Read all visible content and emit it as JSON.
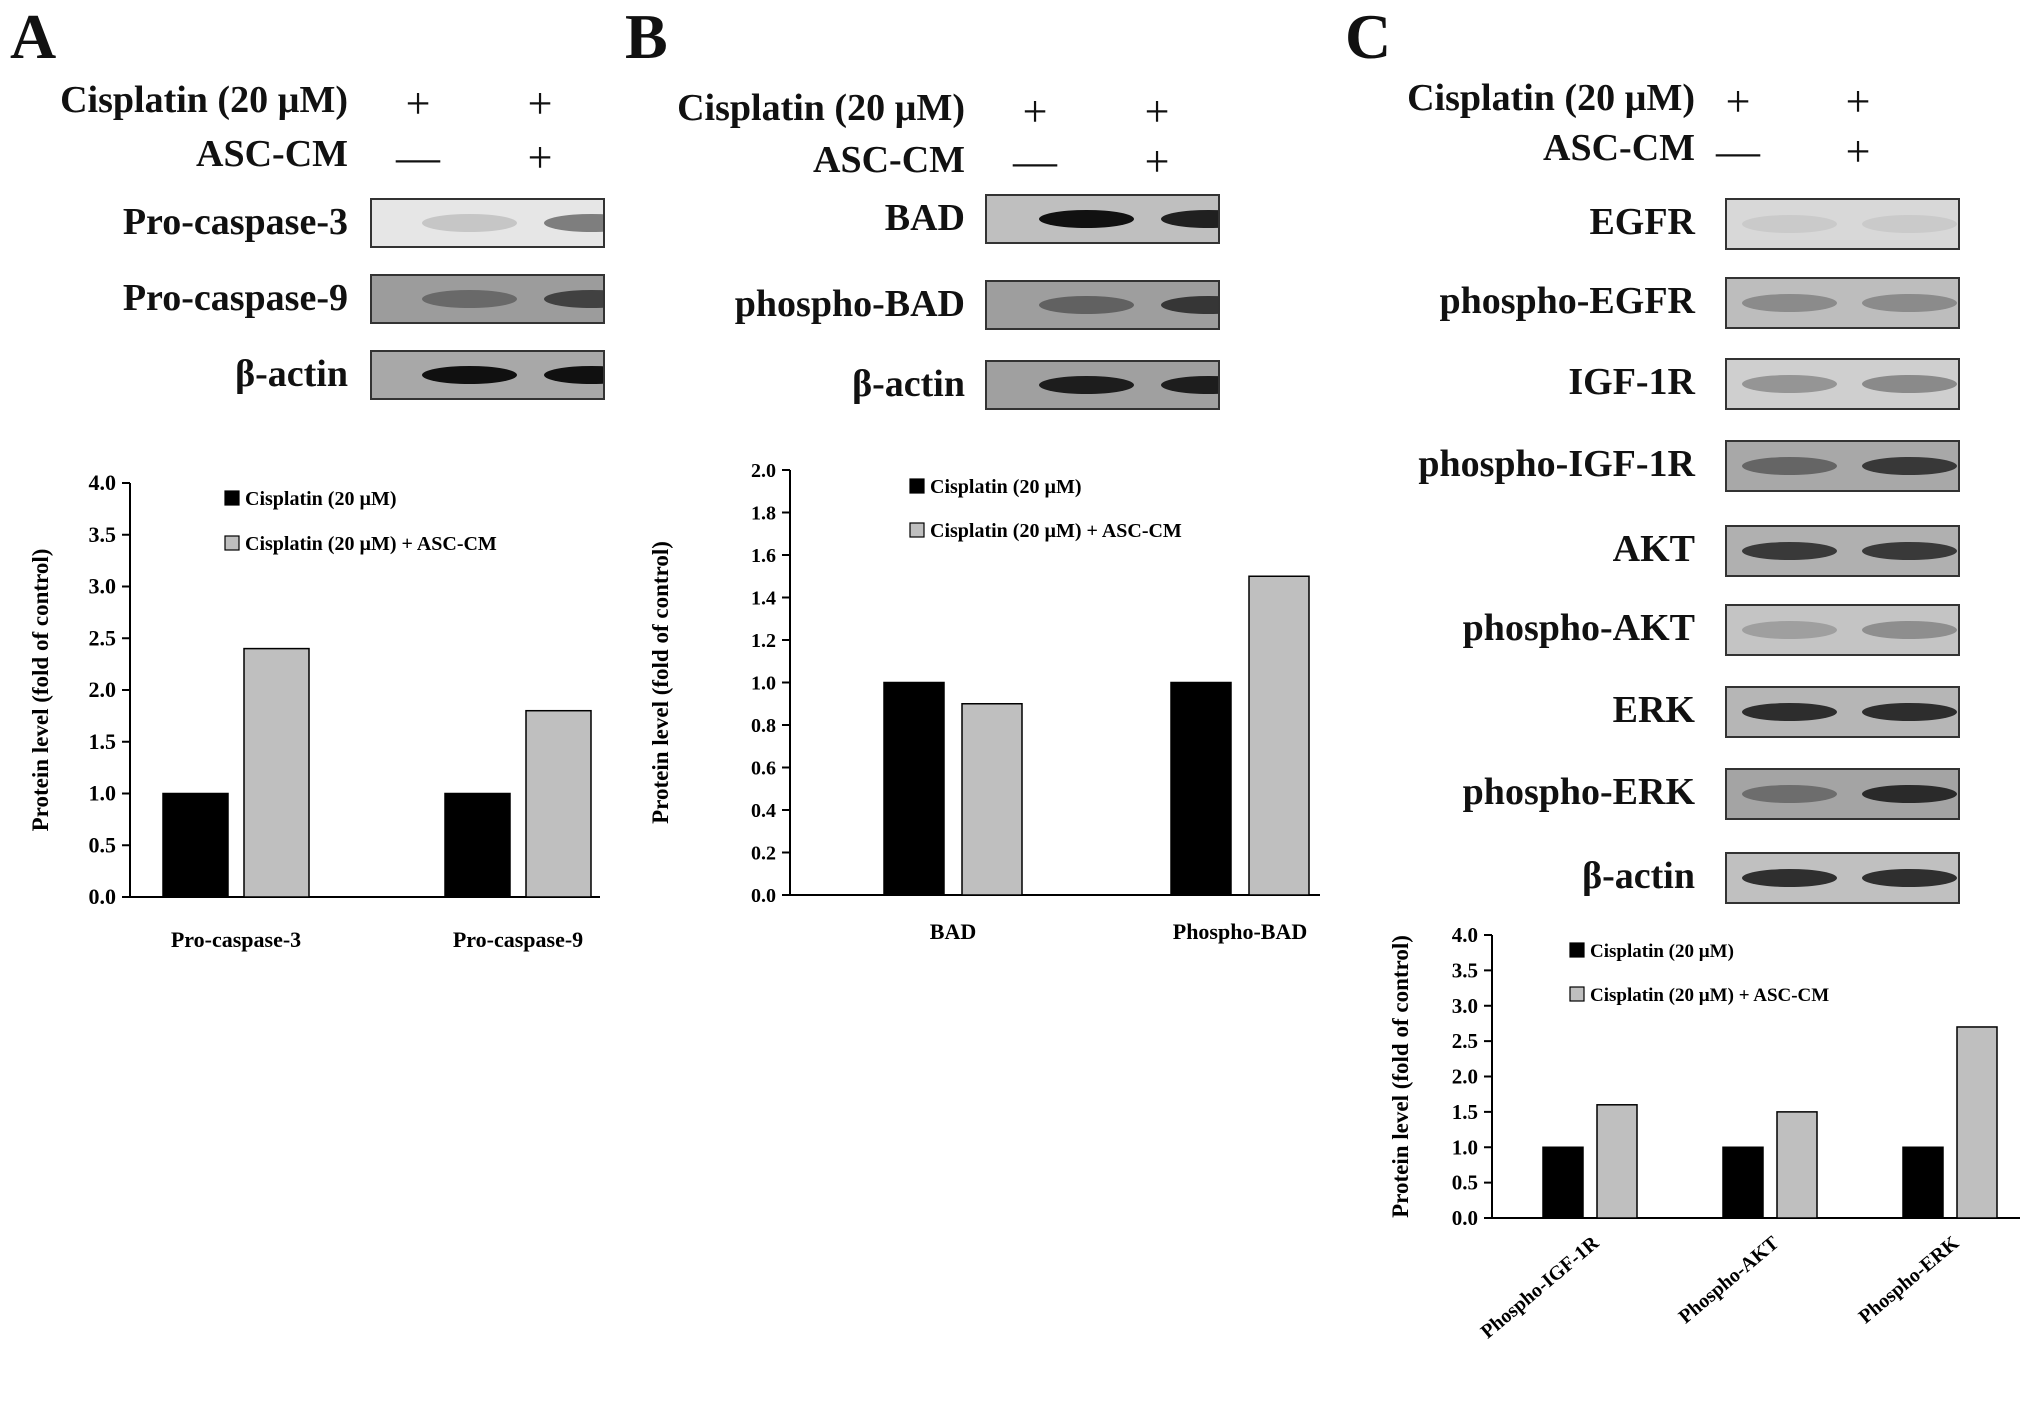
{
  "panels": [
    {
      "letter": "A",
      "conditions": [
        {
          "label": "Cisplatin  (20 µM)",
          "signs": [
            "+",
            "+"
          ]
        },
        {
          "label": "ASC-CM",
          "signs": [
            "—",
            "+"
          ]
        }
      ],
      "blots": [
        {
          "label": "Pro-caspase-3",
          "bg": "#e6e6e6",
          "bands": [
            0.25,
            0.6
          ]
        },
        {
          "label": "Pro-caspase-9",
          "bg": "#9c9c9c",
          "bands": [
            0.55,
            0.75
          ]
        },
        {
          "label": "β-actin",
          "bg": "#a8a8a8",
          "bands": [
            0.95,
            0.95
          ]
        }
      ]
    },
    {
      "letter": "B",
      "conditions": [
        {
          "label": "Cisplatin  (20 µM)",
          "signs": [
            "+",
            "+"
          ]
        },
        {
          "label": "ASC-CM",
          "signs": [
            "—",
            "+"
          ]
        }
      ],
      "blots": [
        {
          "label": "BAD",
          "bg": "#bfbfbf",
          "bands": [
            0.95,
            0.9
          ]
        },
        {
          "label": "phospho-BAD",
          "bg": "#9e9e9e",
          "bands": [
            0.6,
            0.8
          ]
        },
        {
          "label": "β-actin",
          "bg": "#a0a0a0",
          "bands": [
            0.9,
            0.9
          ]
        }
      ]
    },
    {
      "letter": "C",
      "conditions": [
        {
          "label": "Cisplatin  (20 µM)",
          "signs": [
            "+",
            "+"
          ]
        },
        {
          "label": "ASC-CM",
          "signs": [
            "—",
            "+"
          ]
        }
      ],
      "blots": [
        {
          "label": "EGFR",
          "bg": "#d8d8d8",
          "bands": [
            0.1,
            0.1
          ]
        },
        {
          "label": "phospho-EGFR",
          "bg": "#bdbdbd",
          "bands": [
            0.45,
            0.45
          ]
        },
        {
          "label": "IGF-1R",
          "bg": "#cfcfcf",
          "bands": [
            0.45,
            0.5
          ]
        },
        {
          "label": "phospho-IGF-1R",
          "bg": "#a8a8a8",
          "bands": [
            0.6,
            0.8
          ]
        },
        {
          "label": "AKT",
          "bg": "#b0b0b0",
          "bands": [
            0.8,
            0.8
          ]
        },
        {
          "label": "phospho-AKT",
          "bg": "#c4c4c4",
          "bands": [
            0.35,
            0.45
          ]
        },
        {
          "label": "ERK",
          "bg": "#b6b6b6",
          "bands": [
            0.85,
            0.85
          ]
        },
        {
          "label": "phospho-ERK",
          "bg": "#a4a4a4",
          "bands": [
            0.55,
            0.85
          ]
        },
        {
          "label": "β-actin",
          "bg": "#c0c0c0",
          "bands": [
            0.85,
            0.85
          ]
        }
      ]
    }
  ],
  "chart_data": [
    {
      "type": "bar",
      "categories": [
        "Pro-caspase-3",
        "Pro-caspase-9"
      ],
      "series": [
        {
          "name": "Cisplatin  (20 µM)",
          "values": [
            1.0,
            1.0
          ],
          "color": "#000000"
        },
        {
          "name": "Cisplatin  (20 µM) + ASC-CM",
          "values": [
            2.4,
            1.8
          ],
          "color": "#bfbfbf"
        }
      ],
      "ylabel": "Protein level (fold of control)",
      "ylim": [
        0,
        4.0
      ],
      "yticks": [
        "0.0",
        "0.5",
        "1.0",
        "1.5",
        "2.0",
        "2.5",
        "3.0",
        "3.5",
        "4.0"
      ],
      "legend": "top"
    },
    {
      "type": "bar",
      "categories": [
        "BAD",
        "Phospho-BAD"
      ],
      "series": [
        {
          "name": "Cisplatin  (20 µM)",
          "values": [
            1.0,
            1.0
          ],
          "color": "#000000"
        },
        {
          "name": "Cisplatin  (20 µM) + ASC-CM",
          "values": [
            0.9,
            1.5
          ],
          "color": "#bfbfbf"
        }
      ],
      "ylabel": "Protein level (fold of control)",
      "ylim": [
        0,
        2.0
      ],
      "yticks": [
        "0.0",
        "0.2",
        "0.4",
        "0.6",
        "0.8",
        "1.0",
        "1.2",
        "1.4",
        "1.6",
        "1.8",
        "2.0"
      ],
      "legend": "top"
    },
    {
      "type": "bar",
      "categories": [
        "Phospho-IGF-1R",
        "Phospho-AKT",
        "Phospho-ERK"
      ],
      "series": [
        {
          "name": "Cisplatin  (20 µM)",
          "values": [
            1.0,
            1.0,
            1.0
          ],
          "color": "#000000"
        },
        {
          "name": "Cisplatin  (20 µM) + ASC-CM",
          "values": [
            1.6,
            1.5,
            2.7
          ],
          "color": "#bfbfbf"
        }
      ],
      "ylabel": "Protein level (fold of control)",
      "ylim": [
        0,
        4.0
      ],
      "yticks": [
        "0.0",
        "0.5",
        "1.0",
        "1.5",
        "2.0",
        "2.5",
        "3.0",
        "3.5",
        "4.0"
      ],
      "legend": "top",
      "rotated_xlabels": true
    }
  ]
}
